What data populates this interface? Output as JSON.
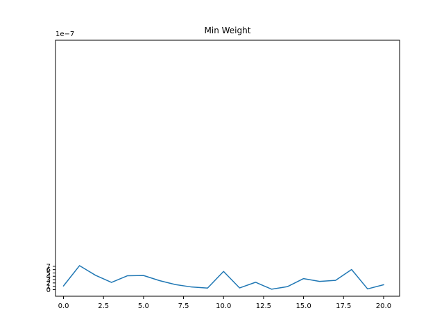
{
  "chart_data": {
    "type": "line",
    "title": "Min Weight",
    "xlabel": "",
    "ylabel": "",
    "y_scale_label": "1e−7",
    "xlim": [
      -0.5,
      21.0
    ],
    "ylim": [
      -2e-07,
      7.5e-06
    ],
    "x_ticks": [
      0,
      2.5,
      5,
      7.5,
      10,
      12.5,
      15,
      17.5,
      20
    ],
    "x_tick_labels": [
      "0.0",
      "2.5",
      "5.0",
      "7.5",
      "10.0",
      "12.5",
      "15.0",
      "17.5",
      "20.0"
    ],
    "y_ticks": [
      0,
      1e-07,
      2e-07,
      3e-07,
      4e-07,
      5e-07,
      6e-07,
      7e-07
    ],
    "y_tick_labels": [
      "0",
      "1",
      "2",
      "3",
      "4",
      "5",
      "6",
      "7"
    ],
    "grid": false,
    "series": [
      {
        "color": "#1f77b4",
        "x": [
          0,
          1,
          2,
          3,
          4,
          5,
          6,
          7,
          8,
          9,
          10,
          11,
          12,
          13,
          14,
          15,
          16,
          17,
          18,
          19,
          20
        ],
        "values": [
          1.1e-07,
          7.2e-07,
          4.3e-07,
          2.15e-07,
          4.16e-07,
          4.24e-07,
          2.7e-07,
          1.5e-07,
          7.8e-08,
          4.6e-08,
          5.46e-07,
          5e-08,
          2.2e-07,
          1.2e-08,
          9e-08,
          3.3e-07,
          2.45e-07,
          2.78e-07,
          6.04e-07,
          2e-08,
          1.46e-07
        ]
      }
    ]
  }
}
